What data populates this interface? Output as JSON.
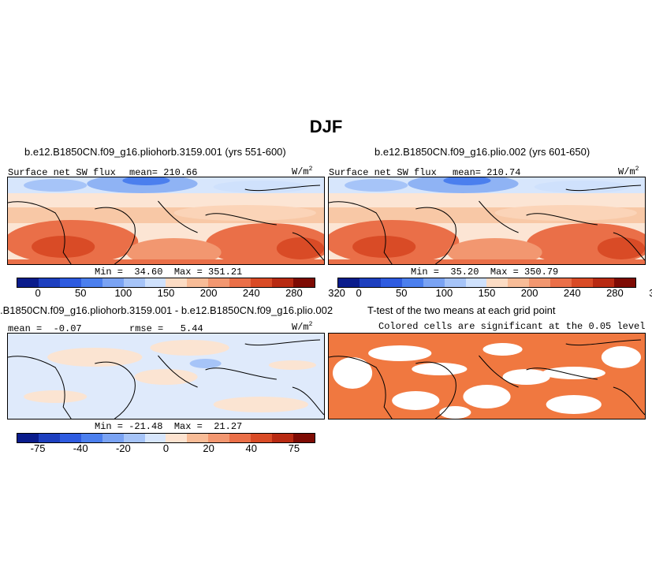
{
  "title": "DJF",
  "panels": {
    "p1": {
      "title": "b.e12.B1850CN.f09_g16.pliohorb.3159.001 (yrs 551-600)",
      "left_label": "Surface net SW flux",
      "center_label": "mean= 210.66",
      "units": "W/m",
      "units_exp": "2",
      "minmax": "Min =  34.60  Max = 351.21"
    },
    "p2": {
      "title": "b.e12.B1850CN.f09_g16.plio.002 (yrs 601-650)",
      "left_label": "Surface net SW flux",
      "center_label": "mean= 210.74",
      "units": "W/m",
      "units_exp": "2",
      "minmax": "Min =  35.20  Max = 350.79"
    },
    "p3": {
      "title": ".B1850CN.f09_g16.pliohorb.3159.001 - b.e12.B1850CN.f09_g16.plio.002",
      "left_label": "mean =  -0.07",
      "center_label": "rmse =   5.44",
      "units": "W/m",
      "units_exp": "2",
      "minmax": "Min = -21.48  Max =  21.27"
    },
    "p4": {
      "title": "T-test of the two means at each grid point",
      "subtitle": "Colored cells are significant at the 0.05 level"
    }
  },
  "colorbar_abs": {
    "colors": [
      "#0a1c8c",
      "#1d3fbf",
      "#2e5be0",
      "#4b7fee",
      "#7aa3f3",
      "#a6c4f8",
      "#cfe1fc",
      "#fcdcc4",
      "#f8bc97",
      "#f29770",
      "#ea6f48",
      "#d94b26",
      "#b82a12",
      "#7e0b04"
    ],
    "ticks": [
      "0",
      "50",
      "100",
      "150",
      "200",
      "240",
      "280",
      "320"
    ]
  },
  "colorbar_diff": {
    "colors": [
      "#0a1c8c",
      "#1d3fbf",
      "#2e5be0",
      "#4b7fee",
      "#7aa3f3",
      "#a6c4f8",
      "#d7e6fc",
      "#fde3d0",
      "#f8bc97",
      "#f29770",
      "#ea6f48",
      "#d94b26",
      "#b82a12",
      "#7e0b04"
    ],
    "ticks": [
      "-75",
      "-40",
      "-20",
      "0",
      "20",
      "40",
      "75"
    ]
  },
  "colors": {
    "significant": "#f07840",
    "land_line": "#000000"
  }
}
